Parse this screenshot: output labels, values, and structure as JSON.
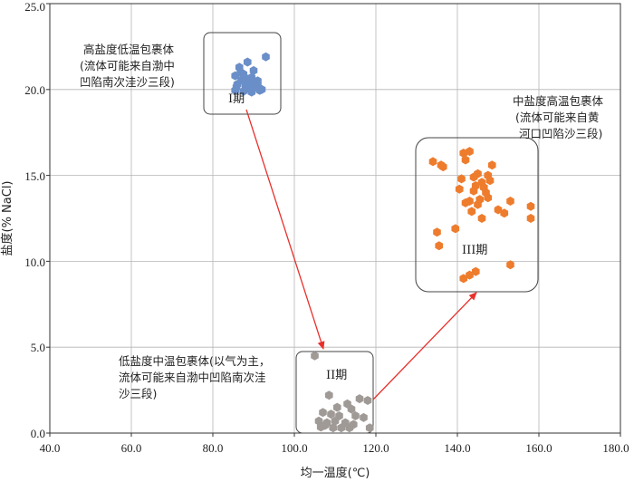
{
  "chart_data": {
    "type": "scatter",
    "xlabel": "均一温度(℃)",
    "ylabel": "盐度(% NaCl)",
    "xlim": [
      40,
      180
    ],
    "ylim": [
      0,
      25
    ],
    "xticks": [
      "40.0",
      "60.0",
      "80.0",
      "100.0",
      "120.0",
      "140.0",
      "160.0",
      "180.0"
    ],
    "yticks": [
      "0.0",
      "5.0",
      "10.0",
      "15.0",
      "20.0",
      "25.0"
    ],
    "grid": true,
    "series": [
      {
        "color": "#6a8ec8",
        "points": [
          [
            93,
            21.9
          ],
          [
            86.5,
            21.3
          ],
          [
            88.5,
            21.6
          ],
          [
            90,
            21.1
          ],
          [
            85.5,
            20.8
          ],
          [
            87.5,
            20.9
          ],
          [
            89.5,
            20.7
          ],
          [
            91,
            20.5
          ],
          [
            86,
            20.3
          ],
          [
            88,
            20.2
          ],
          [
            90,
            20.1
          ],
          [
            92,
            20.0
          ],
          [
            85.5,
            19.95
          ],
          [
            87.5,
            19.9
          ],
          [
            89.5,
            19.85
          ],
          [
            91.5,
            19.95
          ],
          [
            88.5,
            20.6
          ],
          [
            86.8,
            21.0
          ],
          [
            90.5,
            20.4
          ],
          [
            87,
            20.55
          ],
          [
            89,
            20.35
          ],
          [
            91,
            20.25
          ],
          [
            85.8,
            20.15
          ],
          [
            88.2,
            20.05
          ]
        ]
      },
      {
        "color": "#a09a97",
        "points": [
          [
            105,
            4.5
          ],
          [
            108.5,
            2.2
          ],
          [
            116,
            2.0
          ],
          [
            118,
            1.9
          ],
          [
            113,
            1.7
          ],
          [
            110.5,
            1.5
          ],
          [
            114,
            1.4
          ],
          [
            107,
            1.2
          ],
          [
            109,
            1.1
          ],
          [
            111,
            1.0
          ],
          [
            115,
            1.0
          ],
          [
            117,
            0.9
          ],
          [
            106,
            0.7
          ],
          [
            108,
            0.6
          ],
          [
            110,
            0.7
          ],
          [
            112.5,
            0.6
          ],
          [
            114.5,
            0.5
          ],
          [
            106.5,
            0.35
          ],
          [
            109.5,
            0.3
          ],
          [
            113.5,
            0.3
          ],
          [
            118.5,
            0.3
          ],
          [
            111.5,
            0.3
          ],
          [
            107.5,
            0.45
          ]
        ]
      },
      {
        "color": "#ee7c2d",
        "points": [
          [
            134,
            15.8
          ],
          [
            136,
            15.6
          ],
          [
            136.5,
            15.5
          ],
          [
            141.5,
            16.3
          ],
          [
            143,
            16.4
          ],
          [
            142,
            15.9
          ],
          [
            148.5,
            15.6
          ],
          [
            147.5,
            15.0
          ],
          [
            145,
            15.1
          ],
          [
            144,
            14.9
          ],
          [
            141,
            14.8
          ],
          [
            146,
            14.6
          ],
          [
            148,
            14.7
          ],
          [
            144.5,
            14.4
          ],
          [
            146.5,
            14.3
          ],
          [
            140.5,
            14.2
          ],
          [
            144,
            14.1
          ],
          [
            147,
            14.0
          ],
          [
            143,
            13.5
          ],
          [
            145.5,
            13.6
          ],
          [
            147.5,
            13.7
          ],
          [
            153,
            13.5
          ],
          [
            142,
            13.4
          ],
          [
            145,
            13.3
          ],
          [
            150,
            13.0
          ],
          [
            151.5,
            12.8
          ],
          [
            143.5,
            12.9
          ],
          [
            158,
            13.2
          ],
          [
            146,
            12.5
          ],
          [
            158,
            12.5
          ],
          [
            139.5,
            11.9
          ],
          [
            135,
            11.7
          ],
          [
            135.5,
            10.9
          ],
          [
            153,
            9.8
          ],
          [
            141.5,
            9.0
          ],
          [
            143,
            9.2
          ],
          [
            144.5,
            9.4
          ]
        ]
      }
    ],
    "annotations": [
      {
        "lines": [
          "高盐度低温包裹体",
          "(流体可能来自渤中",
          "凹陷南次洼沙三段)"
        ]
      },
      {
        "lines": [
          "低盐度中温包裹体(以气为主，",
          "流体可能来自渤中凹陷南次洼",
          "沙三段)"
        ]
      },
      {
        "lines": [
          "中盐度高温包裹体",
          "(流体可能来自黄",
          "河口凹陷沙三段)"
        ]
      }
    ],
    "stage_labels": [
      "I期",
      "II期",
      "III期"
    ]
  }
}
